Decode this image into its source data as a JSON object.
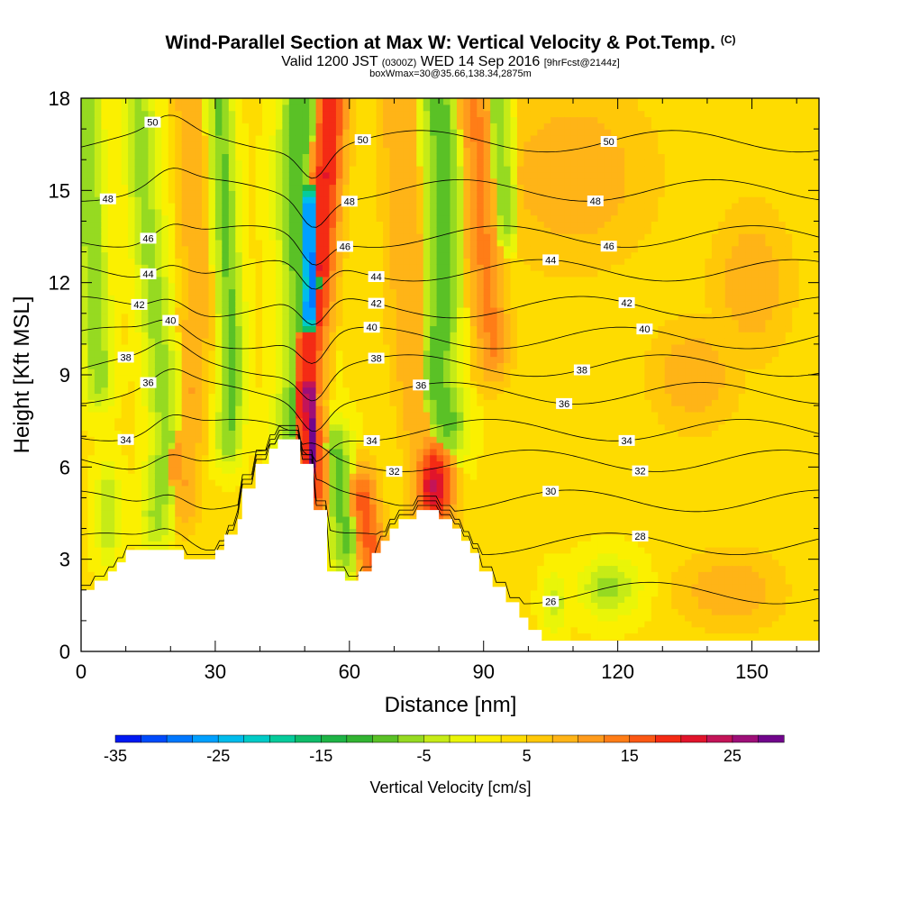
{
  "header": {
    "title": "Wind-Parallel Section at Max W: Vertical Velocity & Pot.Temp.",
    "title_tag": "(C)",
    "subtitle_main": "Valid 1200 JST",
    "subtitle_utc": "(0300Z)",
    "subtitle_date": "WED 14 Sep 2016",
    "subtitle_fcst": "[9hrFcst@2144z]",
    "boxline": "boxWmax=30@35.66,138.34,2875m"
  },
  "chart_data": {
    "type": "heatmap",
    "xlabel": "Distance [nm]",
    "ylabel": "Height [Kft MSL]",
    "xlim": [
      0,
      165
    ],
    "ylim": [
      0,
      18
    ],
    "x_ticks": [
      "0",
      "30",
      "60",
      "90",
      "120",
      "150"
    ],
    "y_ticks": [
      "0",
      "3",
      "6",
      "9",
      "12",
      "15",
      "18"
    ],
    "background_value": 3,
    "terrain": [
      [
        0,
        2
      ],
      [
        3,
        2
      ],
      [
        3,
        2.3
      ],
      [
        6,
        2.3
      ],
      [
        6,
        2.6
      ],
      [
        8,
        2.6
      ],
      [
        8,
        2.9
      ],
      [
        10,
        2.9
      ],
      [
        10,
        3.3
      ],
      [
        23,
        3.3
      ],
      [
        23,
        3.0
      ],
      [
        30,
        3.0
      ],
      [
        30,
        3.3
      ],
      [
        32,
        3.3
      ],
      [
        32,
        3.8
      ],
      [
        35,
        3.8
      ],
      [
        35,
        4.3
      ],
      [
        36,
        4.3
      ],
      [
        36,
        5.3
      ],
      [
        39,
        5.3
      ],
      [
        39,
        6.1
      ],
      [
        42,
        6.1
      ],
      [
        42,
        6.6
      ],
      [
        44,
        6.6
      ],
      [
        44,
        6.9
      ],
      [
        49,
        6.9
      ],
      [
        49,
        6.1
      ],
      [
        52,
        6.1
      ],
      [
        52,
        4.6
      ],
      [
        55,
        4.6
      ],
      [
        55,
        2.6
      ],
      [
        59,
        2.6
      ],
      [
        59,
        2.3
      ],
      [
        62,
        2.3
      ],
      [
        62,
        2.6
      ],
      [
        65,
        2.6
      ],
      [
        65,
        3.2
      ],
      [
        67,
        3.2
      ],
      [
        67,
        3.6
      ],
      [
        69,
        3.6
      ],
      [
        69,
        4.0
      ],
      [
        71,
        4.0
      ],
      [
        71,
        4.3
      ],
      [
        75,
        4.3
      ],
      [
        75,
        4.6
      ],
      [
        80,
        4.6
      ],
      [
        80,
        4.3
      ],
      [
        83,
        4.3
      ],
      [
        83,
        4.0
      ],
      [
        85,
        4.0
      ],
      [
        85,
        3.6
      ],
      [
        87,
        3.6
      ],
      [
        87,
        3.2
      ],
      [
        89,
        3.2
      ],
      [
        89,
        2.6
      ],
      [
        92,
        2.6
      ],
      [
        92,
        2.1
      ],
      [
        95,
        2.1
      ],
      [
        95,
        1.6
      ],
      [
        98,
        1.6
      ],
      [
        98,
        1.1
      ],
      [
        100,
        1.1
      ],
      [
        100,
        0.7
      ],
      [
        103,
        0.7
      ],
      [
        103,
        0.35
      ],
      [
        165,
        0.35
      ],
      [
        165,
        0
      ]
    ],
    "features": [
      {
        "kind": "ridge",
        "value": -7,
        "path": [
          [
            1,
            18
          ],
          [
            2,
            15
          ],
          [
            3,
            11
          ],
          [
            4,
            9
          ]
        ],
        "width": 2.5
      },
      {
        "kind": "ridge",
        "value": -6,
        "path": [
          [
            13,
            17.5
          ],
          [
            14,
            15
          ],
          [
            16,
            12
          ],
          [
            18,
            9
          ],
          [
            19,
            7
          ],
          [
            18,
            5.5
          ],
          [
            17,
            4.5
          ]
        ],
        "width": 2.8
      },
      {
        "kind": "ridge",
        "value": -8,
        "path": [
          [
            31,
            18
          ],
          [
            32,
            15
          ],
          [
            33,
            12
          ],
          [
            34,
            9
          ],
          [
            33,
            7
          ]
        ],
        "width": 2.2
      },
      {
        "kind": "ridge",
        "value": 10,
        "path": [
          [
            24,
            18
          ],
          [
            25,
            15
          ],
          [
            26,
            12
          ],
          [
            25,
            9
          ],
          [
            24,
            7
          ],
          [
            23,
            5
          ]
        ],
        "width": 2.5
      },
      {
        "kind": "ridge",
        "value": -9,
        "path": [
          [
            49,
            18
          ],
          [
            48,
            15
          ],
          [
            49,
            12.5
          ],
          [
            50,
            10
          ],
          [
            49,
            8.5
          ],
          [
            48,
            7.5
          ]
        ],
        "width": 3.5
      },
      {
        "kind": "ridge",
        "value": -30,
        "path": [
          [
            51,
            14.5
          ],
          [
            51,
            13.2
          ],
          [
            51.5,
            12
          ],
          [
            51,
            11
          ]
        ],
        "width": 1.6
      },
      {
        "kind": "ridge",
        "value": 20,
        "path": [
          [
            56,
            18
          ],
          [
            55,
            16
          ],
          [
            54,
            14
          ],
          [
            53,
            12
          ],
          [
            51,
            10
          ],
          [
            50,
            8
          ],
          [
            51,
            7
          ],
          [
            51.5,
            5.5
          ]
        ],
        "width": 2.8
      },
      {
        "kind": "ridge",
        "value": 29,
        "path": [
          [
            51,
            8.5
          ],
          [
            51.5,
            7
          ],
          [
            51.5,
            6.2
          ]
        ],
        "width": 1.3
      },
      {
        "kind": "ridge",
        "value": -8,
        "path": [
          [
            57,
            6.5
          ],
          [
            58,
            5
          ],
          [
            59,
            3.5
          ]
        ],
        "width": 2.6
      },
      {
        "kind": "ridge",
        "value": 16,
        "path": [
          [
            63,
            5
          ],
          [
            64,
            4
          ],
          [
            65,
            3.2
          ]
        ],
        "width": 2.5
      },
      {
        "kind": "ridge",
        "value": 10,
        "path": [
          [
            71,
            18
          ],
          [
            72,
            15
          ],
          [
            73,
            12
          ],
          [
            74,
            9.5
          ],
          [
            76,
            7.5
          ],
          [
            78,
            6.5
          ]
        ],
        "width": 3.5
      },
      {
        "kind": "ridge",
        "value": -9,
        "path": [
          [
            80,
            18
          ],
          [
            81,
            15
          ],
          [
            81,
            12
          ],
          [
            80,
            9.5
          ],
          [
            80,
            8.5
          ],
          [
            82,
            7.5
          ]
        ],
        "width": 3.2
      },
      {
        "kind": "ridge",
        "value": 13,
        "path": [
          [
            88,
            18
          ],
          [
            89,
            16
          ],
          [
            90,
            13
          ],
          [
            92,
            10
          ]
        ],
        "width": 3.0
      },
      {
        "kind": "ridge",
        "value": -6,
        "path": [
          [
            93,
            18
          ],
          [
            94,
            16
          ],
          [
            95,
            14
          ]
        ],
        "width": 2.3
      },
      {
        "kind": "blob",
        "value": 23,
        "x": 79,
        "y": 5.4,
        "rx": 4.5,
        "ry": 1.6
      },
      {
        "kind": "blob",
        "value": 10,
        "x": 110,
        "y": 15.5,
        "rx": 18,
        "ry": 3
      },
      {
        "kind": "blob",
        "value": 10,
        "x": 137,
        "y": 9,
        "rx": 10,
        "ry": 1.8
      },
      {
        "kind": "blob",
        "value": 10,
        "x": 150,
        "y": 12,
        "rx": 9,
        "ry": 2.5
      },
      {
        "kind": "blob",
        "value": 10,
        "x": 145,
        "y": 2,
        "rx": 12,
        "ry": 1.3
      },
      {
        "kind": "blob",
        "value": -6,
        "x": 118,
        "y": 2.1,
        "rx": 7,
        "ry": 1.0
      },
      {
        "kind": "blob",
        "value": -4,
        "x": 106,
        "y": 1.6,
        "rx": 3,
        "ry": 1.0
      },
      {
        "kind": "blob",
        "value": -5,
        "x": 6,
        "y": 4.5,
        "rx": 3,
        "ry": 1.8
      },
      {
        "kind": "blob",
        "value": 12,
        "x": 21,
        "y": 6.2,
        "rx": 3.5,
        "ry": 1.5
      }
    ],
    "isentropes": [
      {
        "label": "26",
        "y": 1.9,
        "labels_at": [
          105
        ]
      },
      {
        "label": "28",
        "y": 3.5,
        "labels_at": [
          125
        ]
      },
      {
        "label": "30",
        "y": 4.9,
        "labels_at": [
          105
        ]
      },
      {
        "label": "32",
        "y": 6.2,
        "labels_at": [
          70,
          125
        ]
      },
      {
        "label": "34",
        "y": 7.2,
        "labels_at": [
          10,
          65,
          122
        ]
      },
      {
        "label": "36",
        "y": 8.4,
        "labels_at": [
          15,
          76,
          108
        ]
      },
      {
        "label": "38",
        "y": 9.3,
        "labels_at": [
          10,
          66,
          112
        ]
      },
      {
        "label": "40",
        "y": 10.2,
        "labels_at": [
          20,
          65,
          126
        ]
      },
      {
        "label": "42",
        "y": 11.2,
        "labels_at": [
          13,
          66,
          122
        ]
      },
      {
        "label": "44",
        "y": 12.4,
        "labels_at": [
          15,
          66,
          105
        ]
      },
      {
        "label": "46",
        "y": 13.5,
        "labels_at": [
          15,
          59,
          118
        ]
      },
      {
        "label": "48",
        "y": 15.0,
        "labels_at": [
          6,
          60,
          115
        ]
      },
      {
        "label": "50",
        "y": 16.6,
        "labels_at": [
          16,
          63,
          118
        ]
      }
    ],
    "colorbar": {
      "label": "Vertical Velocity [cm/s]",
      "min": -35,
      "max": 30,
      "step": 2.5,
      "tick_labels": [
        "-35",
        "-25",
        "-15",
        "-5",
        "5",
        "15",
        "25"
      ],
      "tick_values": [
        -35,
        -25,
        -15,
        -5,
        5,
        15,
        25
      ],
      "stops": [
        {
          "v": -35,
          "color": "#0000ee"
        },
        {
          "v": -30,
          "color": "#0064ff"
        },
        {
          "v": -25,
          "color": "#00b4ff"
        },
        {
          "v": -20,
          "color": "#00d2b4"
        },
        {
          "v": -15,
          "color": "#14b450"
        },
        {
          "v": -10,
          "color": "#3cb428"
        },
        {
          "v": -5,
          "color": "#b4e61e"
        },
        {
          "v": 0,
          "color": "#fafa00"
        },
        {
          "v": 5,
          "color": "#ffd200"
        },
        {
          "v": 10,
          "color": "#ffaa1e"
        },
        {
          "v": 15,
          "color": "#ff6e14"
        },
        {
          "v": 20,
          "color": "#f01414"
        },
        {
          "v": 25,
          "color": "#b4146e"
        },
        {
          "v": 30,
          "color": "#5a0096"
        }
      ]
    }
  }
}
